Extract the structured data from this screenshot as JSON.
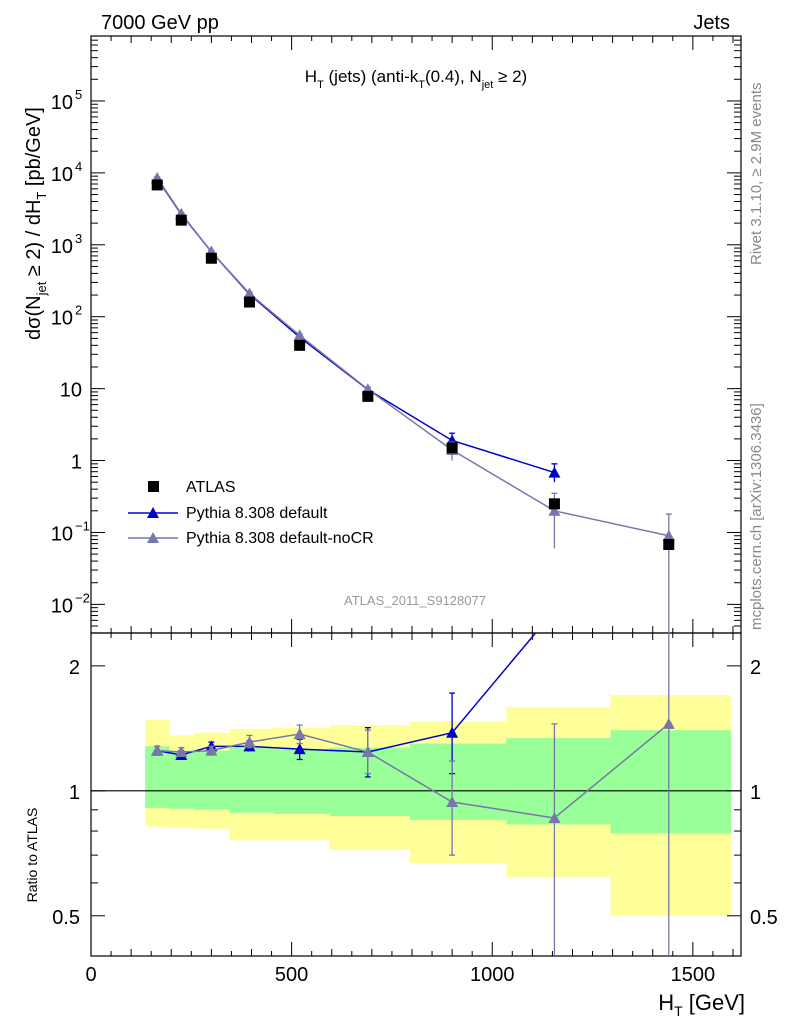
{
  "header": {
    "left": "7000 GeV pp",
    "right": "Jets"
  },
  "side_labels": {
    "rivet": "Rivet 3.1.10, ≥ 2.9M events",
    "mcplots": "mcplots.cern.ch [arXiv:1306.3436]"
  },
  "colors": {
    "atlas": "#000000",
    "default": "#0000cc",
    "nocr": "#7777aa",
    "band_outer": "#ffff99",
    "band_inner": "#99ff99"
  },
  "chart_data": [
    {
      "type": "line",
      "title_parts": {
        "main": "H",
        "sub1": "T",
        "mid": " (jets) (anti-k",
        "sub2": "T",
        "mid2": "(0.4), N",
        "sub3": "jet",
        "end": " ≥ 2)"
      },
      "ylabel_parts": {
        "a": "dσ(N",
        "b": "jet",
        "c": " ≥ 2) / dH",
        "d": "T",
        "e": " [pb/GeV]"
      },
      "watermark": "ATLAS_2011_S9128077",
      "yscale": "log",
      "ylim": [
        0.004,
        800000
      ],
      "xlim": [
        0,
        1620
      ],
      "yticks": [
        {
          "v": 0.01,
          "base": "10",
          "exp": "−2"
        },
        {
          "v": 0.1,
          "base": "10",
          "exp": "−1"
        },
        {
          "v": 1,
          "base": "1",
          "exp": ""
        },
        {
          "v": 10,
          "base": "10",
          "exp": ""
        },
        {
          "v": 100,
          "base": "10",
          "exp": "2"
        },
        {
          "v": 1000,
          "base": "10",
          "exp": "3"
        },
        {
          "v": 10000,
          "base": "10",
          "exp": "4"
        },
        {
          "v": 100000,
          "base": "10",
          "exp": "5"
        }
      ],
      "legend_position": "bottom-left",
      "series": [
        {
          "name": "ATLAS",
          "marker": "square",
          "color": "#000000",
          "points": [
            {
              "x": 165,
              "y": 6800
            },
            {
              "x": 225,
              "y": 2200
            },
            {
              "x": 300,
              "y": 650
            },
            {
              "x": 395,
              "y": 160
            },
            {
              "x": 520,
              "y": 40
            },
            {
              "x": 690,
              "y": 7.8
            },
            {
              "x": 900,
              "y": 1.5
            },
            {
              "x": 1155,
              "y": 0.25
            },
            {
              "x": 1440,
              "y": 0.068
            }
          ]
        },
        {
          "name": "Pythia 8.308 default",
          "marker": "triangle",
          "color": "#0000cc",
          "points": [
            {
              "x": 165,
              "y": 8300,
              "lo": 8000,
              "hi": 8600
            },
            {
              "x": 225,
              "y": 2650,
              "lo": 2550,
              "hi": 2750
            },
            {
              "x": 300,
              "y": 800,
              "lo": 770,
              "hi": 830
            },
            {
              "x": 395,
              "y": 205,
              "lo": 195,
              "hi": 215
            },
            {
              "x": 520,
              "y": 52,
              "lo": 49,
              "hi": 55
            },
            {
              "x": 690,
              "y": 9.7,
              "lo": 9.0,
              "hi": 10.4
            },
            {
              "x": 900,
              "y": 1.9,
              "lo": 1.5,
              "hi": 2.4
            },
            {
              "x": 1155,
              "y": 0.68,
              "lo": 0.5,
              "hi": 0.9
            }
          ]
        },
        {
          "name": "Pythia 8.308 default-noCR",
          "marker": "triangle",
          "color": "#7777aa",
          "points": [
            {
              "x": 165,
              "y": 8500,
              "lo": 8200,
              "hi": 8800
            },
            {
              "x": 225,
              "y": 2700,
              "lo": 2600,
              "hi": 2800
            },
            {
              "x": 300,
              "y": 800,
              "lo": 770,
              "hi": 830
            },
            {
              "x": 395,
              "y": 210,
              "lo": 200,
              "hi": 220
            },
            {
              "x": 520,
              "y": 55,
              "lo": 52,
              "hi": 58
            },
            {
              "x": 690,
              "y": 9.8,
              "lo": 9.2,
              "hi": 10.4
            },
            {
              "x": 900,
              "y": 1.4,
              "lo": 1.0,
              "hi": 1.8
            },
            {
              "x": 1155,
              "y": 0.2,
              "lo": 0.06,
              "hi": 0.35
            },
            {
              "x": 1440,
              "y": 0.09,
              "lo": 0.002,
              "hi": 0.18
            }
          ]
        }
      ]
    },
    {
      "type": "line",
      "ylabel": "Ratio to ATLAS",
      "xlabel_parts": {
        "a": "H",
        "b": "T",
        "c": " [GeV]"
      },
      "yscale": "log",
      "ylim": [
        0.4,
        2.4
      ],
      "xlim": [
        0,
        1620
      ],
      "xticks": [
        0,
        500,
        1000,
        1500
      ],
      "yticks": [
        0.5,
        1,
        2
      ],
      "reference": 1,
      "bands": [
        {
          "x0": 135,
          "x1": 195,
          "outer_lo": 0.82,
          "outer_hi": 1.48,
          "inner_lo": 0.91,
          "inner_hi": 1.28
        },
        {
          "x0": 195,
          "x1": 255,
          "outer_lo": 0.815,
          "outer_hi": 1.36,
          "inner_lo": 0.905,
          "inner_hi": 1.24
        },
        {
          "x0": 255,
          "x1": 345,
          "outer_lo": 0.81,
          "outer_hi": 1.38,
          "inner_lo": 0.9,
          "inner_hi": 1.25
        },
        {
          "x0": 345,
          "x1": 455,
          "outer_lo": 0.76,
          "outer_hi": 1.41,
          "inner_lo": 0.885,
          "inner_hi": 1.27
        },
        {
          "x0": 455,
          "x1": 595,
          "outer_lo": 0.76,
          "outer_hi": 1.42,
          "inner_lo": 0.88,
          "inner_hi": 1.26
        },
        {
          "x0": 595,
          "x1": 795,
          "outer_lo": 0.72,
          "outer_hi": 1.44,
          "inner_lo": 0.87,
          "inner_hi": 1.27
        },
        {
          "x0": 795,
          "x1": 1035,
          "outer_lo": 0.67,
          "outer_hi": 1.47,
          "inner_lo": 0.85,
          "inner_hi": 1.3
        },
        {
          "x0": 1035,
          "x1": 1295,
          "outer_lo": 0.62,
          "outer_hi": 1.59,
          "inner_lo": 0.83,
          "inner_hi": 1.34
        },
        {
          "x0": 1295,
          "x1": 1595,
          "outer_lo": 0.5,
          "outer_hi": 1.7,
          "inner_lo": 0.79,
          "inner_hi": 1.4
        }
      ],
      "series": [
        {
          "name": "Pythia 8.308 default",
          "color": "#0000cc",
          "points": [
            {
              "x": 165,
              "y": 1.25,
              "lo": 1.22,
              "hi": 1.28
            },
            {
              "x": 225,
              "y": 1.22,
              "lo": 1.2,
              "hi": 1.25
            },
            {
              "x": 300,
              "y": 1.28,
              "lo": 1.25,
              "hi": 1.31
            },
            {
              "x": 395,
              "y": 1.28,
              "lo": 1.25,
              "hi": 1.32
            },
            {
              "x": 520,
              "y": 1.26,
              "lo": 1.19,
              "hi": 1.33
            },
            {
              "x": 690,
              "y": 1.24,
              "lo": 1.08,
              "hi": 1.42
            },
            {
              "x": 900,
              "y": 1.38,
              "lo": 1.1,
              "hi": 1.72
            },
            {
              "x": 1155,
              "y": 2.72
            }
          ]
        },
        {
          "name": "Pythia 8.308 default-noCR",
          "color": "#7777aa",
          "points": [
            {
              "x": 165,
              "y": 1.25,
              "lo": 1.22,
              "hi": 1.28
            },
            {
              "x": 225,
              "y": 1.24,
              "lo": 1.21,
              "hi": 1.27
            },
            {
              "x": 300,
              "y": 1.25,
              "lo": 1.22,
              "hi": 1.28
            },
            {
              "x": 395,
              "y": 1.31,
              "lo": 1.27,
              "hi": 1.36
            },
            {
              "x": 520,
              "y": 1.37,
              "lo": 1.3,
              "hi": 1.44
            },
            {
              "x": 690,
              "y": 1.24,
              "lo": 1.1,
              "hi": 1.4
            },
            {
              "x": 900,
              "y": 0.94,
              "lo": 0.7,
              "hi": 1.18
            },
            {
              "x": 1155,
              "y": 0.86,
              "lo": 0.3,
              "hi": 1.45
            },
            {
              "x": 1440,
              "y": 1.45,
              "lo": 0.3,
              "hi": 2.4
            }
          ]
        }
      ]
    }
  ]
}
